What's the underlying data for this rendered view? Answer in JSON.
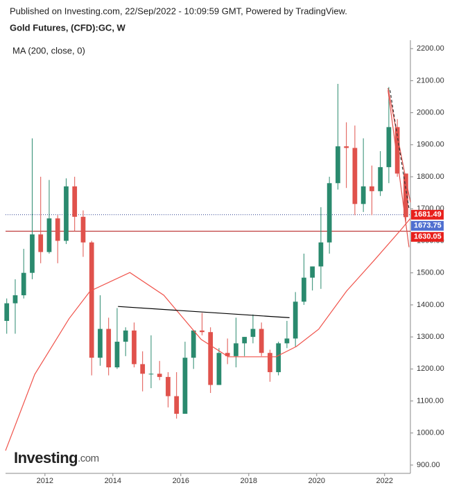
{
  "chart_data": {
    "type": "candlestick",
    "title": "Published on Investing.com, 22/Sep/2022 - 10:09:59 GMT, Powered by TradingView.",
    "subtitle": "Gold Futures, (CFD):GC, W",
    "logo": {
      "main": "Investing",
      "suffix": ".com"
    },
    "xlim": [
      2010.84,
      2022.76
    ],
    "ylim": [
      874,
      2222
    ],
    "xticks": [
      2012,
      2014,
      2016,
      2018,
      2020,
      2022
    ],
    "yticks": [
      {
        "value": 900,
        "label": "900.00"
      },
      {
        "value": 1000,
        "label": "1000.00"
      },
      {
        "value": 1100,
        "label": "1100.00"
      },
      {
        "value": 1200,
        "label": "1200.00"
      },
      {
        "value": 1300,
        "label": "1300.00"
      },
      {
        "value": 1400,
        "label": "1400.00"
      },
      {
        "value": 1500,
        "label": "1500.00"
      },
      {
        "value": 1600,
        "label": "1600.00"
      },
      {
        "value": 1700,
        "label": "1700.00"
      },
      {
        "value": 1800,
        "label": "1800.00"
      },
      {
        "value": 1900,
        "label": "1900.00"
      },
      {
        "value": 2000,
        "label": "2000.00"
      },
      {
        "value": 2100,
        "label": "2100.00"
      },
      {
        "value": 2200,
        "label": "2200.00"
      }
    ],
    "up_color": "#2a8a6e",
    "down_color": "#e0524c",
    "x": [
      2010.875,
      2011.125,
      2011.375,
      2011.625,
      2011.875,
      2012.125,
      2012.375,
      2012.625,
      2012.875,
      2013.125,
      2013.375,
      2013.625,
      2013.875,
      2014.125,
      2014.375,
      2014.625,
      2014.875,
      2015.125,
      2015.375,
      2015.625,
      2015.875,
      2016.125,
      2016.375,
      2016.625,
      2016.875,
      2017.125,
      2017.375,
      2017.625,
      2017.875,
      2018.125,
      2018.375,
      2018.625,
      2018.875,
      2019.125,
      2019.375,
      2019.625,
      2019.875,
      2020.125,
      2020.375,
      2020.625,
      2020.875,
      2021.125,
      2021.375,
      2021.625,
      2021.875,
      2022.125,
      2022.375,
      2022.625
    ],
    "open": [
      1350,
      1405,
      1430,
      1500,
      1620,
      1565,
      1670,
      1600,
      1770,
      1675,
      1595,
      1235,
      1325,
      1205,
      1285,
      1320,
      1215,
      1185,
      1185,
      1175,
      1115,
      1060,
      1235,
      1320,
      1315,
      1150,
      1250,
      1240,
      1280,
      1300,
      1325,
      1250,
      1190,
      1280,
      1295,
      1410,
      1485,
      1520,
      1595,
      1780,
      1895,
      1890,
      1715,
      1770,
      1755,
      1830,
      1955,
      1810
    ],
    "high": [
      1420,
      1480,
      1575,
      1920,
      1800,
      1790,
      1680,
      1795,
      1800,
      1695,
      1600,
      1430,
      1360,
      1390,
      1330,
      1345,
      1255,
      1305,
      1225,
      1190,
      1190,
      1285,
      1310,
      1375,
      1330,
      1265,
      1295,
      1360,
      1300,
      1370,
      1345,
      1260,
      1285,
      1350,
      1440,
      1560,
      1520,
      1705,
      1800,
      2090,
      1970,
      1960,
      1920,
      1835,
      1880,
      2080,
      1980,
      1810
    ],
    "low": [
      1310,
      1310,
      1420,
      1480,
      1530,
      1560,
      1530,
      1590,
      1630,
      1550,
      1180,
      1210,
      1180,
      1200,
      1240,
      1205,
      1130,
      1140,
      1165,
      1080,
      1045,
      1060,
      1200,
      1305,
      1125,
      1150,
      1215,
      1205,
      1240,
      1280,
      1240,
      1160,
      1180,
      1265,
      1270,
      1400,
      1445,
      1450,
      1560,
      1760,
      1765,
      1680,
      1690,
      1680,
      1740,
      1780,
      1800,
      1660
    ],
    "close": [
      1405,
      1430,
      1500,
      1620,
      1565,
      1670,
      1600,
      1770,
      1675,
      1595,
      1235,
      1325,
      1205,
      1285,
      1320,
      1215,
      1185,
      1185,
      1175,
      1115,
      1060,
      1235,
      1320,
      1315,
      1150,
      1250,
      1240,
      1280,
      1300,
      1325,
      1250,
      1190,
      1280,
      1295,
      1410,
      1485,
      1520,
      1595,
      1780,
      1895,
      1890,
      1715,
      1770,
      1755,
      1830,
      1955,
      1810,
      1674
    ],
    "indicator": {
      "name": "MA (200, close, 0)",
      "color": "#f0524a",
      "x": [
        2010.84,
        2011.7,
        2012.71,
        2013.33,
        2014.5,
        2015.5,
        2016.6,
        2017.4,
        2018.8,
        2019.4,
        2020.06,
        2020.88,
        2021.7,
        2022.5,
        2022.76
      ],
      "values": [
        945,
        1183,
        1357,
        1443,
        1501,
        1430,
        1292,
        1238,
        1238,
        1270,
        1324,
        1443,
        1540,
        1637,
        1670
      ]
    },
    "trendlines": [
      {
        "color": "#000000",
        "dash": "none",
        "x": [
          2014.15,
          2019.2
        ],
        "values": [
          1395,
          1360
        ]
      },
      {
        "color": "#e0524c",
        "dash": "none",
        "x": [
          2022.1,
          2022.76
        ],
        "values": [
          2077,
          1720
        ]
      },
      {
        "color": "#e0524c",
        "dash": "none",
        "x": [
          2022.1,
          2022.72
        ],
        "values": [
          2070,
          1580
        ]
      },
      {
        "color": "#333333",
        "dash": "4 3",
        "x": [
          2022.16,
          2022.72
        ],
        "values": [
          2070,
          1700
        ]
      }
    ],
    "price_levels": [
      {
        "value": 1681.49,
        "color": "#e8201c",
        "line": "dotted",
        "line_color": "#2a3f8f"
      },
      {
        "value": 1673.75,
        "color": "#4f6fd0",
        "line": "none",
        "line_color": "#4f6fd0"
      },
      {
        "value": 1630.05,
        "color": "#e8201c",
        "line": "solid",
        "line_color": "#b01010"
      }
    ]
  }
}
